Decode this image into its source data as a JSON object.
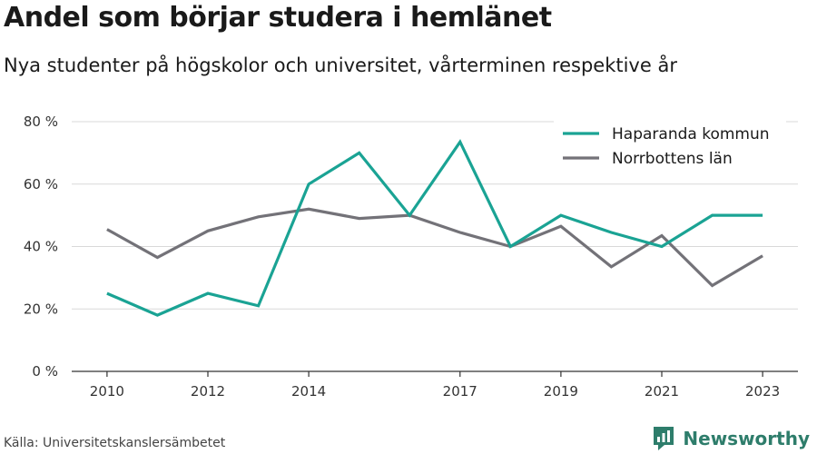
{
  "header": {
    "title": "Andel som börjar studera i hemlänet",
    "subtitle": "Nya studenter på högskolor och universitet, vårterminen respektive år"
  },
  "footer": {
    "source": "Källa: Universitetskanslersämbetet",
    "brand": "Newsworthy"
  },
  "colors": {
    "haparanda": "#1aa394",
    "norrbotten": "#737278",
    "grid": "#d9d9d9",
    "axis": "#333333",
    "brand": "#2e7d6b"
  },
  "chart_data": {
    "type": "line",
    "title": "Andel som börjar studera i hemlänet",
    "subtitle": "Nya studenter på högskolor och universitet, vårterminen respektive år",
    "xlabel": "",
    "ylabel": "",
    "x": [
      2010,
      2011,
      2012,
      2013,
      2014,
      2015,
      2016,
      2017,
      2018,
      2019,
      2020,
      2021,
      2022,
      2023
    ],
    "x_tick_labels": [
      "2010",
      "2012",
      "2014",
      "2017",
      "2019",
      "2021",
      "2023"
    ],
    "x_tick_values": [
      2010,
      2012,
      2014,
      2017,
      2019,
      2021,
      2023
    ],
    "y_tick_labels": [
      "0 %",
      "20 %",
      "40 %",
      "60 %",
      "80 %"
    ],
    "y_tick_values": [
      0,
      20,
      40,
      60,
      80
    ],
    "ylim": [
      0,
      80
    ],
    "xlim": [
      2009.3,
      2023.7
    ],
    "grid": true,
    "legend_position": "top-right",
    "series": [
      {
        "name": "Haparanda kommun",
        "color": "#1aa394",
        "values": [
          25,
          18,
          25,
          21,
          60,
          70,
          50,
          73.5,
          40,
          50,
          44.5,
          40,
          50,
          50
        ]
      },
      {
        "name": "Norrbottens län",
        "color": "#737278",
        "values": [
          45.5,
          36.5,
          45,
          49.5,
          52,
          49,
          50,
          44.5,
          40,
          46.5,
          33.5,
          43.5,
          27.5,
          37
        ]
      }
    ]
  }
}
